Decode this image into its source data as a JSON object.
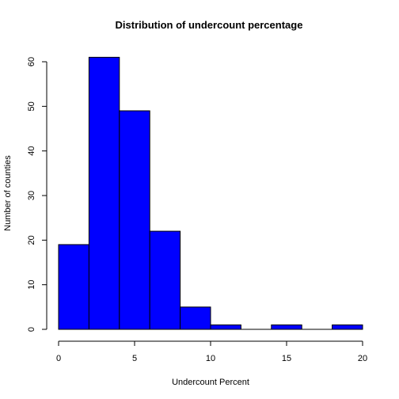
{
  "chart_data": {
    "type": "bar",
    "title": "Distribution of undercount percentage",
    "xlabel": "Undercount Percent",
    "ylabel": "Number of counties",
    "bin_edges": [
      0,
      2,
      4,
      6,
      8,
      10,
      12,
      14,
      16,
      18,
      20
    ],
    "values": [
      19,
      61,
      49,
      22,
      5,
      1,
      0,
      1,
      0,
      1
    ],
    "xlim": [
      0,
      20
    ],
    "ylim": [
      0,
      61
    ],
    "x_ticks": [
      0,
      5,
      10,
      15,
      20
    ],
    "y_ticks": [
      0,
      10,
      20,
      30,
      40,
      50,
      60
    ],
    "bar_color": "#0000ff",
    "bar_border_color": "#000000",
    "grid": false
  }
}
